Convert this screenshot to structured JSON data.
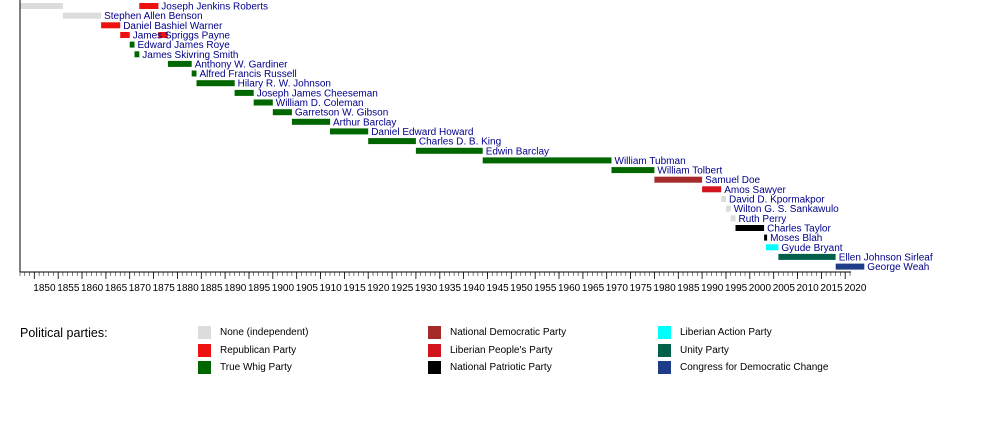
{
  "chart_data": {
    "type": "bar",
    "orientation": "horizontal-timeline",
    "title": "",
    "xlabel": "",
    "ylabel": "",
    "xlim": [
      1847,
      2024
    ],
    "x_ticks": [
      1850,
      1855,
      1860,
      1865,
      1870,
      1875,
      1880,
      1885,
      1890,
      1895,
      1900,
      1905,
      1910,
      1915,
      1920,
      1925,
      1930,
      1935,
      1940,
      1945,
      1950,
      1955,
      1960,
      1965,
      1970,
      1975,
      1980,
      1985,
      1990,
      1995,
      2000,
      2005,
      2010,
      2015,
      2020
    ],
    "grid": false,
    "legend_position": "bottom",
    "legend_title": "Political parties:",
    "parties": [
      {
        "name": "None (independent)",
        "color": "#dcdcdc"
      },
      {
        "name": "Republican Party",
        "color": "#ee1111"
      },
      {
        "name": "True Whig Party",
        "color": "#006600"
      },
      {
        "name": "National Democratic Party",
        "color": "#a52a2a"
      },
      {
        "name": "Liberian People's Party",
        "color": "#d2141e"
      },
      {
        "name": "National Patriotic Party",
        "color": "#000000"
      },
      {
        "name": "Liberian Action Party",
        "color": "#00ffff"
      },
      {
        "name": "Unity Party",
        "color": "#00604a"
      },
      {
        "name": "Congress for Democratic Change",
        "color": "#1f3c88"
      }
    ],
    "series": [
      {
        "label": "",
        "start": 1847,
        "end": 1856,
        "party": 0
      },
      {
        "label": "Joseph Jenkins Roberts",
        "start": 1872,
        "end": 1876,
        "party": 1
      },
      {
        "label": "Stephen Allen Benson",
        "start": 1856,
        "end": 1864,
        "party": 0
      },
      {
        "label": "Daniel Bashiel Warner",
        "start": 1864,
        "end": 1868,
        "party": 1
      },
      {
        "label": "James Spriggs Payne",
        "start": 1868,
        "end": 1870,
        "party": 1
      },
      {
        "label": "",
        "start": 1876,
        "end": 1878,
        "party": 1
      },
      {
        "label": "Edward James Roye",
        "start": 1870,
        "end": 1871,
        "party": 2
      },
      {
        "label": "James Skivring Smith",
        "start": 1871,
        "end": 1872,
        "party": 2
      },
      {
        "label": "Anthony W. Gardiner",
        "start": 1878,
        "end": 1883,
        "party": 2
      },
      {
        "label": "Alfred Francis Russell",
        "start": 1883,
        "end": 1884,
        "party": 2
      },
      {
        "label": "Hilary R. W. Johnson",
        "start": 1884,
        "end": 1892,
        "party": 2
      },
      {
        "label": "Joseph James Cheeseman",
        "start": 1892,
        "end": 1896,
        "party": 2
      },
      {
        "label": "William D. Coleman",
        "start": 1896,
        "end": 1900,
        "party": 2
      },
      {
        "label": "Garretson W. Gibson",
        "start": 1900,
        "end": 1904,
        "party": 2
      },
      {
        "label": "Arthur Barclay",
        "start": 1904,
        "end": 1912,
        "party": 2
      },
      {
        "label": "Daniel Edward Howard",
        "start": 1912,
        "end": 1920,
        "party": 2
      },
      {
        "label": "Charles D. B. King",
        "start": 1920,
        "end": 1930,
        "party": 2
      },
      {
        "label": "Edwin Barclay",
        "start": 1930,
        "end": 1944,
        "party": 2
      },
      {
        "label": "William Tubman",
        "start": 1944,
        "end": 1971,
        "party": 2
      },
      {
        "label": "William Tolbert",
        "start": 1971,
        "end": 1980,
        "party": 2
      },
      {
        "label": "Samuel Doe",
        "start": 1980,
        "end": 1990,
        "party": 3
      },
      {
        "label": "Amos Sawyer",
        "start": 1990,
        "end": 1994,
        "party": 4
      },
      {
        "label": "David D. Kpormakpor",
        "start": 1994,
        "end": 1995,
        "party": 0
      },
      {
        "label": "Wilton G. S. Sankawulo",
        "start": 1995,
        "end": 1996,
        "party": 0
      },
      {
        "label": "Ruth Perry",
        "start": 1996,
        "end": 1997,
        "party": 0
      },
      {
        "label": "Charles Taylor",
        "start": 1997,
        "end": 2003,
        "party": 5
      },
      {
        "label": "Moses Blah",
        "start": 2003,
        "end": 2003.4,
        "party": 5
      },
      {
        "label": "Gyude Bryant",
        "start": 2003.4,
        "end": 2006,
        "party": 6
      },
      {
        "label": "Ellen Johnson Sirleaf",
        "start": 2006,
        "end": 2018,
        "party": 7
      },
      {
        "label": "George Weah",
        "start": 2018,
        "end": 2024,
        "party": 8
      }
    ]
  }
}
